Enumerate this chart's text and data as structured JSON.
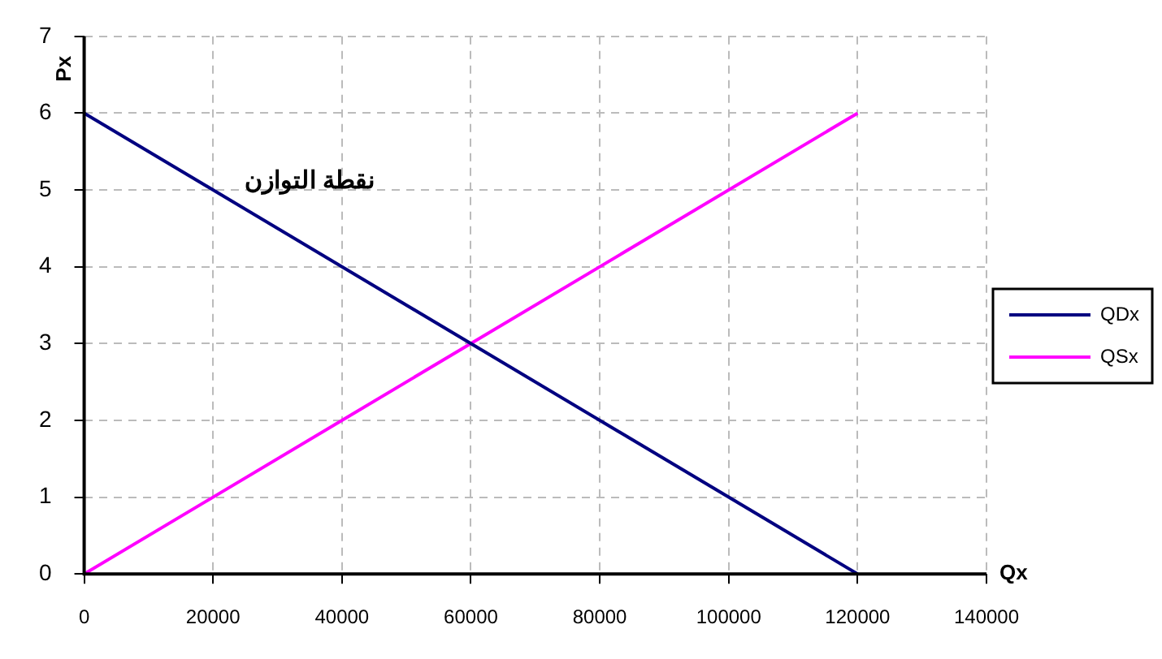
{
  "chart_data": {
    "type": "line",
    "xlabel": "Qx",
    "ylabel": "Px",
    "x": [
      0,
      120000
    ],
    "series": [
      {
        "name": "QDx",
        "color": "#000080",
        "values": [
          6,
          0
        ]
      },
      {
        "name": "QSx",
        "color": "#ff00ff",
        "values": [
          0,
          6
        ]
      }
    ],
    "xlim": [
      0,
      140000
    ],
    "xticks": [
      0,
      20000,
      40000,
      60000,
      80000,
      100000,
      120000,
      140000
    ],
    "ylim": [
      0,
      7
    ],
    "yticks": [
      0,
      1,
      2,
      3,
      4,
      5,
      6,
      7
    ],
    "annotations": [
      "نقطة التوازن"
    ],
    "grid": true,
    "legend": "right",
    "marker": "none",
    "line_style": "solid"
  }
}
